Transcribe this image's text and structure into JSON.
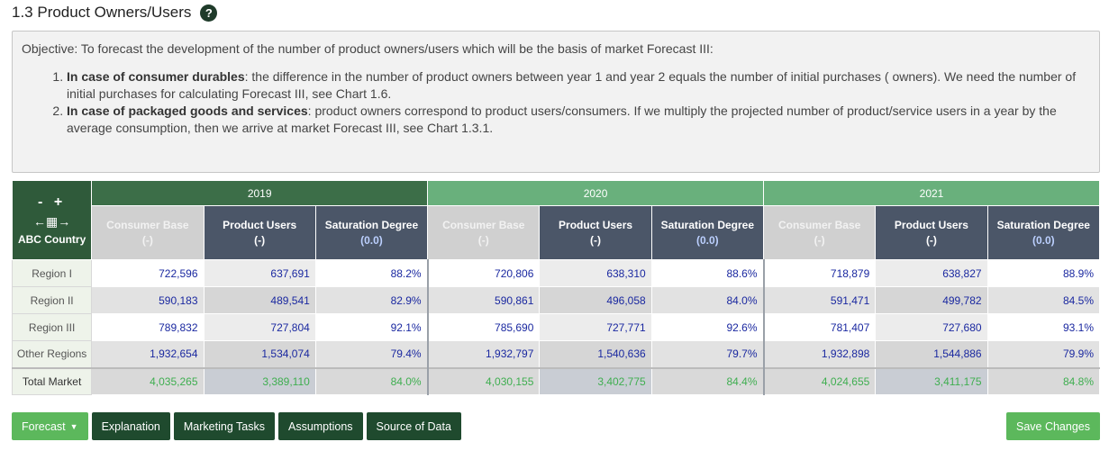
{
  "section": {
    "title": "1.3 Product Owners/Users",
    "help_icon": "question-circle-icon"
  },
  "objective": {
    "intro": "Objective: To forecast the development of the number of product owners/users which will be the basis of market Forecast III:",
    "items": [
      {
        "bold": "In case of consumer durables",
        "text": ": the difference in the number of product owners between year 1 and year 2 equals the number of initial purchases ( owners). We need the number of initial purchases for calculating Forecast III, see Chart 1.6."
      },
      {
        "bold": "In case of packaged goods and services",
        "text": ": product owners correspond to product users/consumers. If we multiply the projected number of product/service users in a year by the average consumption, then we arrive at market Forecast III, see Chart 1.3.1."
      }
    ]
  },
  "table": {
    "corner": {
      "minus": "-",
      "plus": "+",
      "country": "ABC Country"
    },
    "years": [
      "2019",
      "2020",
      "2021"
    ],
    "columns": [
      {
        "label": "Consumer Base",
        "unit": "(-)"
      },
      {
        "label": "Product Users",
        "unit": "(-)"
      },
      {
        "label": "Saturation Degree",
        "unit": "(0.0)"
      }
    ],
    "rows": [
      {
        "label": "Region I",
        "values": [
          "722,596",
          "637,691",
          "88.2%",
          "720,806",
          "638,310",
          "88.6%",
          "718,879",
          "638,827",
          "88.9%"
        ]
      },
      {
        "label": "Region II",
        "values": [
          "590,183",
          "489,541",
          "82.9%",
          "590,861",
          "496,058",
          "84.0%",
          "591,471",
          "499,782",
          "84.5%"
        ]
      },
      {
        "label": "Region III",
        "values": [
          "789,832",
          "727,804",
          "92.1%",
          "785,690",
          "727,771",
          "92.6%",
          "781,407",
          "727,680",
          "93.1%"
        ]
      },
      {
        "label": "Other Regions",
        "values": [
          "1,932,654",
          "1,534,074",
          "79.4%",
          "1,932,797",
          "1,540,636",
          "79.7%",
          "1,932,898",
          "1,544,886",
          "79.9%"
        ]
      }
    ],
    "total": {
      "label": "Total Market",
      "values": [
        "4,035,265",
        "3,389,110",
        "84.0%",
        "4,030,155",
        "3,402,775",
        "84.4%",
        "4,024,655",
        "3,411,175",
        "84.8%"
      ]
    }
  },
  "buttons": {
    "forecast": "Forecast",
    "explanation": "Explanation",
    "marketing_tasks": "Marketing Tasks",
    "assumptions": "Assumptions",
    "source_of_data": "Source of Data",
    "save_changes": "Save Changes"
  },
  "colors": {
    "year_dark": "#3c6e48",
    "year_light": "#69b07c",
    "header_slate": "#4b5668",
    "value_blue": "#1a28a0",
    "total_green": "#3fae50",
    "button_green": "#5cb85c",
    "button_dark": "#1f4a2e"
  }
}
